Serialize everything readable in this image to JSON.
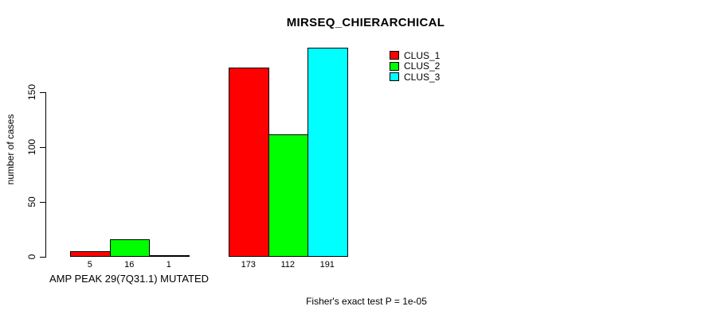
{
  "window": {
    "background": "#ffffff",
    "foreground": "#000000"
  },
  "chart_data": {
    "type": "bar",
    "title": "MIRSEQ_CHIERARCHICAL",
    "ylabel": "number of cases",
    "xlabel": "AMP PEAK 29(7Q31.1) MUTATED",
    "footer": "Fisher's exact test P = 1e-05",
    "yticks": [
      0,
      50,
      100,
      150
    ],
    "ylim": [
      0,
      195
    ],
    "grid": false,
    "legend_position": "top-right",
    "bar_border_color": "#000000",
    "axis_color": "#000000",
    "groups": [
      "AMP PEAK 29(7Q31.1) MUTATED",
      ""
    ],
    "series": [
      {
        "name": "CLUS_1",
        "color": "#ff0000",
        "values": [
          5,
          173
        ]
      },
      {
        "name": "CLUS_2",
        "color": "#00ff00",
        "values": [
          16,
          112
        ]
      },
      {
        "name": "CLUS_3",
        "color": "#00ffff",
        "values": [
          1,
          191
        ]
      }
    ]
  }
}
